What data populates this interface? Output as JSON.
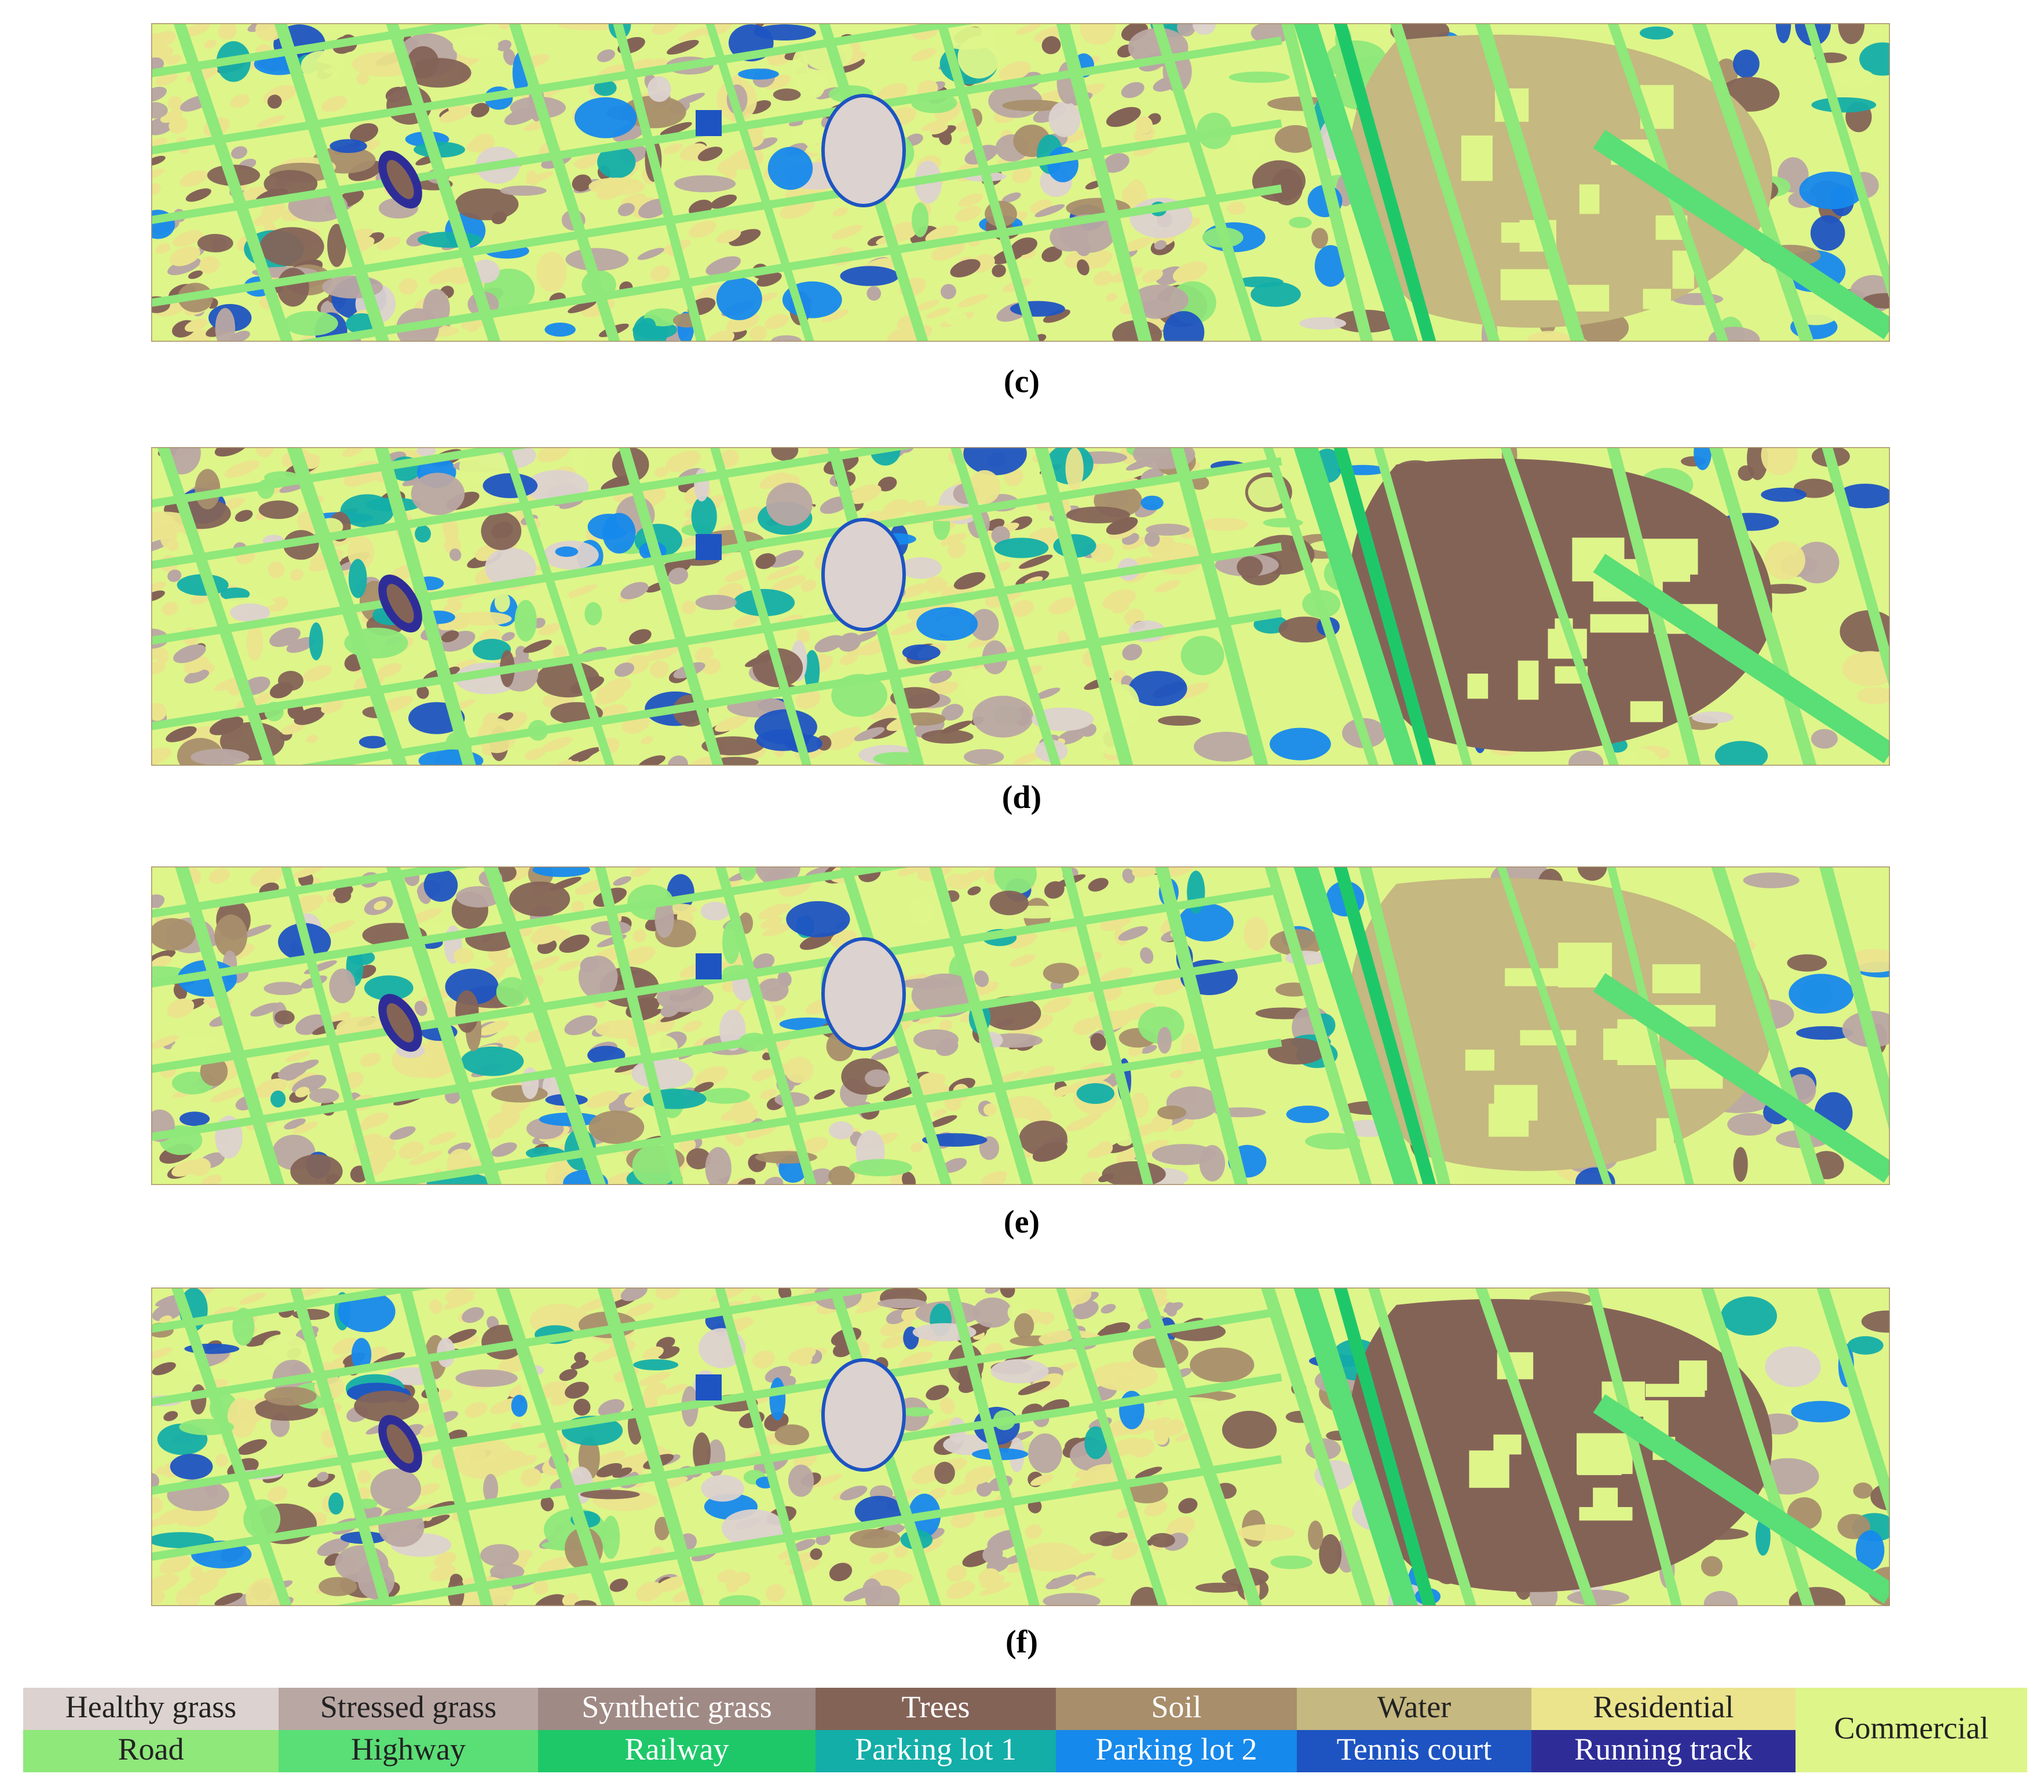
{
  "panels": [
    {
      "label": "(c)"
    },
    {
      "label": "(d)"
    },
    {
      "label": "(e)"
    },
    {
      "label": "(f)"
    }
  ],
  "legend": [
    {
      "name": "Healthy grass",
      "color": "#dcd2cf"
    },
    {
      "name": "Stressed grass",
      "color": "#b9a7a3"
    },
    {
      "name": "Synthetic grass",
      "color": "#a08a85"
    },
    {
      "name": "Trees",
      "color": "#846357"
    },
    {
      "name": "Soil",
      "color": "#a88e6b"
    },
    {
      "name": "Water",
      "color": "#c5b880"
    },
    {
      "name": "Residential",
      "color": "#ebe48d"
    },
    {
      "name": "Commercial",
      "color": "#def58a"
    },
    {
      "name": "Road",
      "color": "#8ee87a"
    },
    {
      "name": "Highway",
      "color": "#5ade76"
    },
    {
      "name": "Railway",
      "color": "#1ec869"
    },
    {
      "name": "Parking lot 1",
      "color": "#13aea8"
    },
    {
      "name": "Parking lot 2",
      "color": "#1689ec"
    },
    {
      "name": "Tennis court",
      "color": "#1d54c2"
    },
    {
      "name": "Running track",
      "color": "#2e2d98"
    }
  ]
}
